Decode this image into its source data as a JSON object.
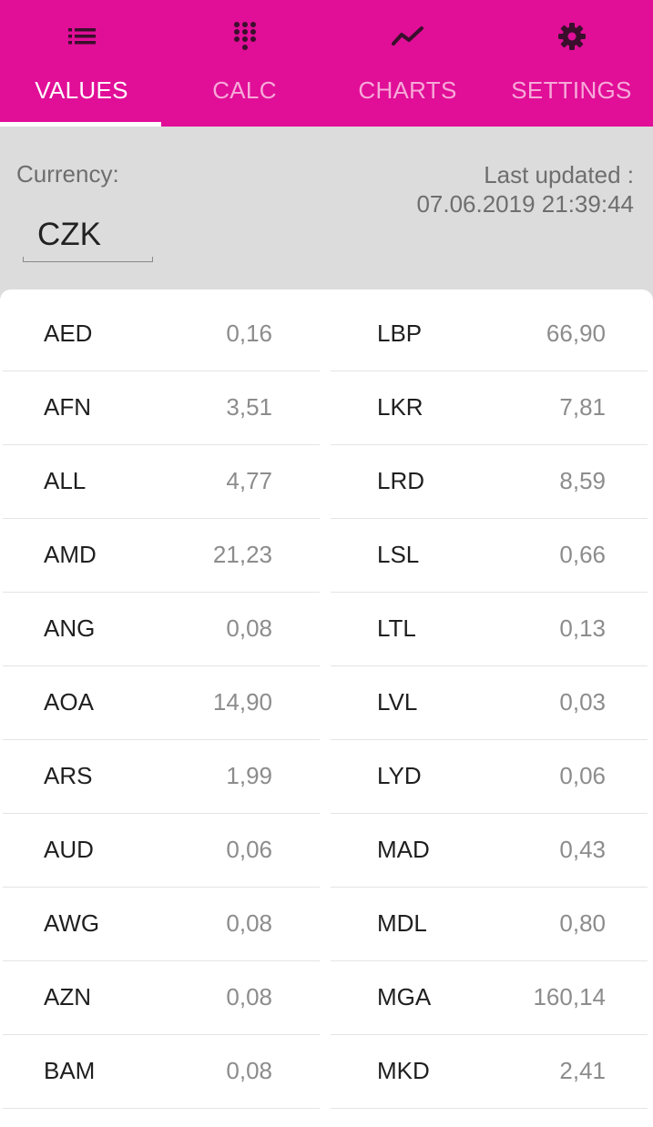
{
  "tabs": [
    {
      "label": "VALUES",
      "icon": "list-icon",
      "active": true
    },
    {
      "label": "CALC",
      "icon": "dialpad-icon",
      "active": false
    },
    {
      "label": "CHARTS",
      "icon": "trend-line-icon",
      "active": false
    },
    {
      "label": "SETTINGS",
      "icon": "gear-icon",
      "active": false
    }
  ],
  "colors": {
    "accent": "#e10e98",
    "background": "#dcdcdc",
    "card": "#ffffff"
  },
  "header": {
    "currency_label": "Currency:",
    "currency_value": "CZK",
    "updated_label": "Last updated :",
    "updated_value": "07.06.2019 21:39:44"
  },
  "rates_left": [
    {
      "code": "AED",
      "value": "0,16"
    },
    {
      "code": "AFN",
      "value": "3,51"
    },
    {
      "code": "ALL",
      "value": "4,77"
    },
    {
      "code": "AMD",
      "value": "21,23"
    },
    {
      "code": "ANG",
      "value": "0,08"
    },
    {
      "code": "AOA",
      "value": "14,90"
    },
    {
      "code": "ARS",
      "value": "1,99"
    },
    {
      "code": "AUD",
      "value": "0,06"
    },
    {
      "code": "AWG",
      "value": "0,08"
    },
    {
      "code": "AZN",
      "value": "0,08"
    },
    {
      "code": "BAM",
      "value": "0,08"
    }
  ],
  "rates_right": [
    {
      "code": "LBP",
      "value": "66,90"
    },
    {
      "code": "LKR",
      "value": "7,81"
    },
    {
      "code": "LRD",
      "value": "8,59"
    },
    {
      "code": "LSL",
      "value": "0,66"
    },
    {
      "code": "LTL",
      "value": "0,13"
    },
    {
      "code": "LVL",
      "value": "0,03"
    },
    {
      "code": "LYD",
      "value": "0,06"
    },
    {
      "code": "MAD",
      "value": "0,43"
    },
    {
      "code": "MDL",
      "value": "0,80"
    },
    {
      "code": "MGA",
      "value": "160,14"
    },
    {
      "code": "MKD",
      "value": "2,41"
    }
  ]
}
